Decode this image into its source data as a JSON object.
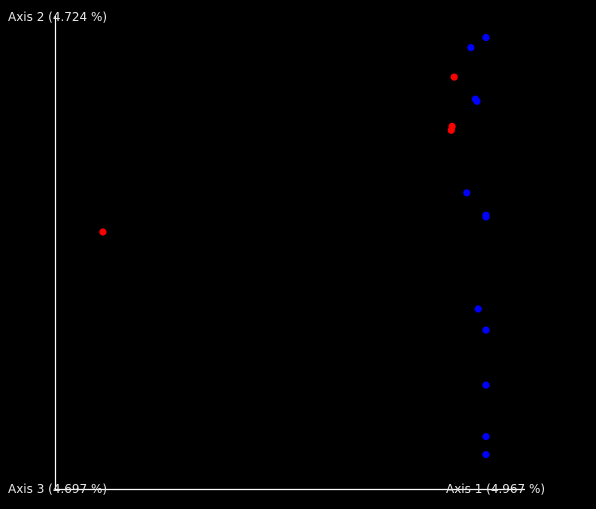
{
  "chart_data": {
    "type": "scatter",
    "axes": {
      "axis1_label": "Axis 1 (4.967 %)",
      "axis2_label": "Axis 2 (4.724 %)",
      "axis3_label": "Axis 3 (4.697 %)",
      "axis1_range": [
        0,
        1
      ],
      "axis2_range": [
        0,
        1
      ]
    },
    "grid": false,
    "background": "#000000",
    "axis_color": "#ffffff",
    "series": [
      {
        "color": "#ff0000",
        "points": [
          {
            "x": 0.061,
            "y": 0.541
          },
          {
            "x": 0.922,
            "y": 0.893
          },
          {
            "x": 0.917,
            "y": 0.781
          },
          {
            "x": 0.915,
            "y": 0.772
          }
        ]
      },
      {
        "color": "#0000ff",
        "points": [
          {
            "x": 1.0,
            "y": 0.983
          },
          {
            "x": 0.963,
            "y": 0.96
          },
          {
            "x": 0.974,
            "y": 0.843
          },
          {
            "x": 0.978,
            "y": 0.838
          },
          {
            "x": 0.953,
            "y": 0.63
          },
          {
            "x": 1.0,
            "y": 0.575
          },
          {
            "x": 1.0,
            "y": 0.579
          },
          {
            "x": 0.981,
            "y": 0.366
          },
          {
            "x": 1.0,
            "y": 0.318
          },
          {
            "x": 1.0,
            "y": 0.193
          },
          {
            "x": 1.0,
            "y": 0.076
          },
          {
            "x": 1.0,
            "y": 0.035
          }
        ]
      }
    ]
  }
}
